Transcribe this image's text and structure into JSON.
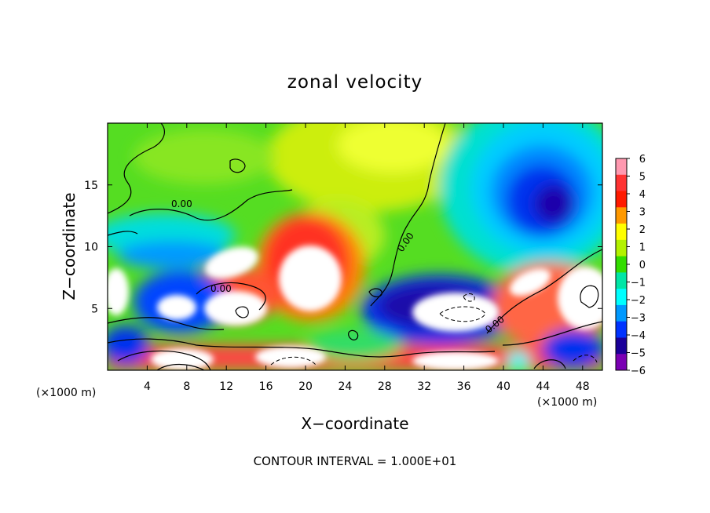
{
  "chart_data": {
    "type": "heatmap",
    "title": "zonal velocity",
    "xlabel": "X−coordinate",
    "ylabel": "Z−coordinate",
    "x_unit": "(×1000 m)",
    "y_unit": "(×1000 m)",
    "footer": "CONTOUR INTERVAL = 1.000E+01",
    "xlim": [
      0,
      50
    ],
    "ylim": [
      0,
      20
    ],
    "x_ticks": [
      "4",
      "8",
      "12",
      "16",
      "20",
      "24",
      "28",
      "32",
      "36",
      "40",
      "44",
      "48"
    ],
    "y_ticks": [
      "5",
      "10",
      "15"
    ],
    "contour_labels": [
      "0.00",
      "0.00",
      "0.00",
      "0.00"
    ],
    "colorbar": {
      "ticks": [
        "6",
        "5",
        "4",
        "3",
        "2",
        "1",
        "0",
        "−1",
        "−2",
        "−3",
        "−4",
        "−5",
        "−6"
      ],
      "range": [
        -6,
        6
      ],
      "colors": [
        "#ff99b0",
        "#ff3333",
        "#ff1a00",
        "#ff9900",
        "#ffff00",
        "#b3f200",
        "#33dd00",
        "#00e6a6",
        "#00ffff",
        "#0099ff",
        "#0033ff",
        "#1a0099",
        "#7a00b3"
      ]
    }
  }
}
